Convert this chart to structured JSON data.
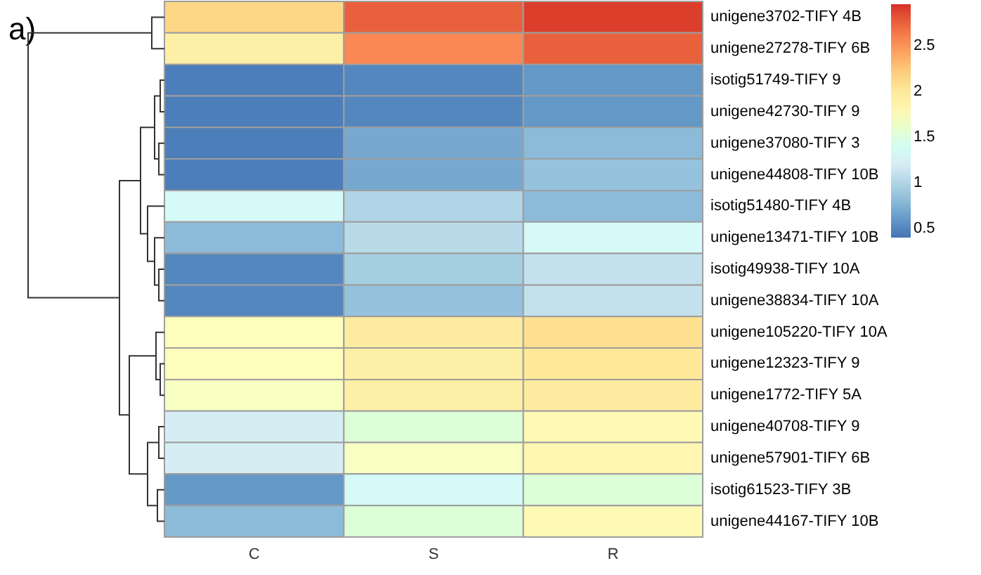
{
  "chart_data": {
    "type": "heatmap",
    "title": "a)",
    "categories": [
      "C",
      "S",
      "R"
    ],
    "y_categories": [
      "unigene3702-TIFY 4B",
      "unigene27278-TIFY 6B",
      "isotig51749-TIFY 9",
      "unigene42730-TIFY 9",
      "unigene37080-TIFY 3",
      "unigene44808-TIFY 10B",
      "isotig51480-TIFY 4B",
      "unigene13471-TIFY 10B",
      "isotig49938-TIFY 10A",
      "unigene38834-TIFY 10A",
      "unigene105220-TIFY 10A",
      "unigene12323-TIFY 9",
      "unigene1772-TIFY 5A",
      "unigene40708-TIFY 9",
      "unigene57901-TIFY 6B",
      "isotig61523-TIFY 3B",
      "unigene44167-TIFY 10B"
    ],
    "cells": [
      [
        2.15,
        2.75,
        2.9
      ],
      [
        1.9,
        2.55,
        2.75
      ],
      [
        0.45,
        0.5,
        0.6
      ],
      [
        0.45,
        0.5,
        0.6
      ],
      [
        0.45,
        0.7,
        0.8
      ],
      [
        0.45,
        0.7,
        0.85
      ],
      [
        1.35,
        1.0,
        0.8
      ],
      [
        0.8,
        1.05,
        1.35
      ],
      [
        0.5,
        0.95,
        1.1
      ],
      [
        0.5,
        0.85,
        1.1
      ],
      [
        1.7,
        1.95,
        2.1
      ],
      [
        1.7,
        1.9,
        2.0
      ],
      [
        1.65,
        1.9,
        1.95
      ],
      [
        1.2,
        1.55,
        1.75
      ],
      [
        1.2,
        1.65,
        1.8
      ],
      [
        0.6,
        1.35,
        1.55
      ],
      [
        0.8,
        1.55,
        1.75
      ]
    ],
    "clim": [
      0.4,
      2.95
    ],
    "cticks": [
      0.5,
      1,
      1.5,
      2,
      2.5
    ]
  }
}
